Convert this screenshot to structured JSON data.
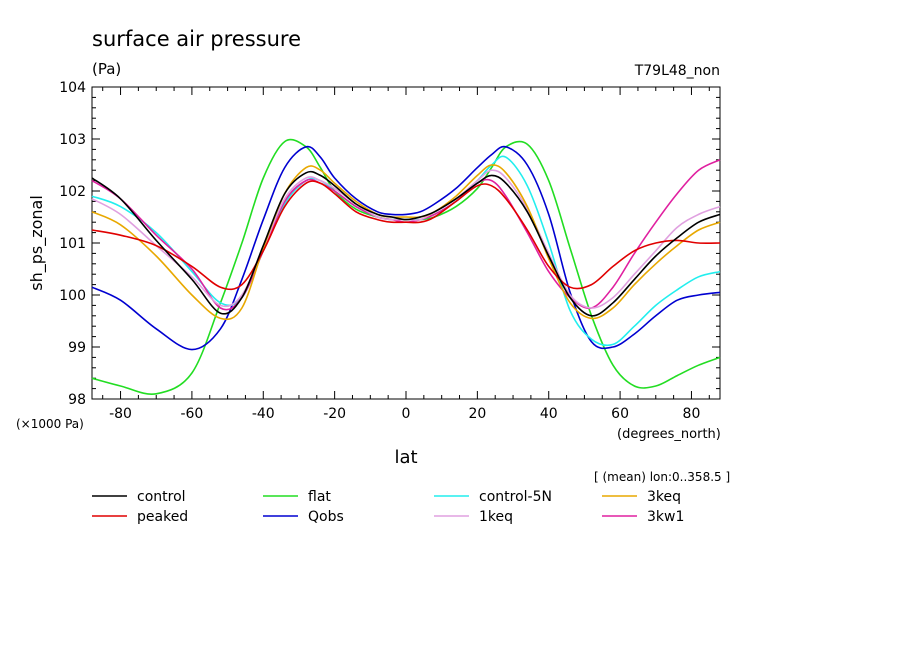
{
  "chart_data": {
    "type": "line",
    "title": "surface air pressure",
    "units": "(Pa)",
    "run_label": "T79L48_non",
    "ylabel": "sh_ps_zonal",
    "xlabel": "lat",
    "x_units": "(degrees_north)",
    "y_scale_label": "(×1000 Pa)",
    "mean_note": "[ (mean) lon:0..358.5 ]",
    "xlim": [
      -88,
      88
    ],
    "ylim": [
      98,
      104
    ],
    "x_ticks": [
      -80,
      -60,
      -40,
      -20,
      0,
      20,
      40,
      60,
      80
    ],
    "y_ticks": [
      98,
      99,
      100,
      101,
      102,
      103,
      104
    ],
    "grid": false,
    "legend_position": "bottom",
    "x": [
      -88,
      -80,
      -70,
      -60,
      -52,
      -46,
      -40,
      -34,
      -28,
      -24,
      -20,
      -14,
      -8,
      -4,
      0,
      4,
      8,
      14,
      20,
      24,
      28,
      34,
      40,
      46,
      52,
      58,
      64,
      70,
      76,
      82,
      88
    ],
    "series": [
      {
        "name": "control",
        "color": "#000000",
        "values": [
          102.25,
          101.85,
          101.05,
          100.3,
          99.65,
          99.95,
          100.95,
          101.95,
          102.35,
          102.3,
          102.1,
          101.75,
          101.55,
          101.5,
          101.45,
          101.5,
          101.6,
          101.85,
          102.15,
          102.3,
          102.15,
          101.6,
          100.75,
          99.95,
          99.6,
          99.85,
          100.3,
          100.75,
          101.1,
          101.4,
          101.55
        ]
      },
      {
        "name": "peaked",
        "color": "#e00000",
        "values": [
          101.25,
          101.15,
          100.95,
          100.55,
          100.15,
          100.2,
          100.85,
          101.7,
          102.15,
          102.15,
          101.95,
          101.6,
          101.45,
          101.4,
          101.4,
          101.4,
          101.5,
          101.8,
          102.1,
          102.1,
          101.85,
          101.25,
          100.55,
          100.15,
          100.2,
          100.55,
          100.85,
          101.0,
          101.05,
          101.0,
          101.0
        ]
      },
      {
        "name": "flat",
        "color": "#22dd22",
        "values": [
          98.4,
          98.25,
          98.1,
          98.5,
          99.85,
          101.0,
          102.25,
          102.95,
          102.85,
          102.45,
          102.0,
          101.65,
          101.5,
          101.45,
          101.45,
          101.45,
          101.5,
          101.7,
          102.05,
          102.45,
          102.85,
          102.9,
          102.2,
          100.9,
          99.6,
          98.65,
          98.25,
          98.25,
          98.45,
          98.65,
          98.8
        ]
      },
      {
        "name": "Qobs",
        "color": "#0000d0",
        "values": [
          100.15,
          99.9,
          99.35,
          98.95,
          99.35,
          100.3,
          101.45,
          102.45,
          102.85,
          102.65,
          102.25,
          101.85,
          101.6,
          101.55,
          101.55,
          101.6,
          101.75,
          102.05,
          102.45,
          102.7,
          102.85,
          102.5,
          101.55,
          100.05,
          99.1,
          99.0,
          99.25,
          99.6,
          99.9,
          100.0,
          100.05
        ]
      },
      {
        "name": "control-5N",
        "color": "#22eeee",
        "values": [
          101.9,
          101.7,
          101.2,
          100.45,
          99.85,
          99.95,
          100.85,
          101.75,
          102.2,
          102.2,
          102.0,
          101.7,
          101.5,
          101.45,
          101.45,
          101.45,
          101.55,
          101.8,
          102.2,
          102.5,
          102.65,
          102.1,
          101.0,
          99.7,
          99.15,
          99.05,
          99.4,
          99.8,
          100.1,
          100.35,
          100.45
        ]
      },
      {
        "name": "1keq",
        "color": "#e0a0e0",
        "values": [
          101.85,
          101.55,
          100.95,
          100.35,
          99.8,
          100.0,
          100.9,
          101.85,
          102.25,
          102.2,
          102.05,
          101.75,
          101.5,
          101.45,
          101.45,
          101.45,
          101.6,
          101.85,
          102.2,
          102.4,
          102.25,
          101.65,
          100.8,
          100.0,
          99.75,
          99.95,
          100.4,
          100.85,
          101.3,
          101.55,
          101.7
        ]
      },
      {
        "name": "3keq",
        "color": "#e8a800",
        "values": [
          101.6,
          101.35,
          100.75,
          100.0,
          99.55,
          99.75,
          100.9,
          101.95,
          102.45,
          102.4,
          102.15,
          101.8,
          101.55,
          101.5,
          101.5,
          101.5,
          101.6,
          101.9,
          102.3,
          102.5,
          102.35,
          101.7,
          100.7,
          99.85,
          99.55,
          99.75,
          100.2,
          100.6,
          100.95,
          101.25,
          101.4
        ]
      },
      {
        "name": "3kw1",
        "color": "#e020a0",
        "values": [
          102.2,
          101.85,
          101.15,
          100.5,
          99.75,
          99.95,
          100.85,
          101.8,
          102.2,
          102.15,
          102.0,
          101.7,
          101.5,
          101.45,
          101.4,
          101.45,
          101.55,
          101.8,
          102.15,
          102.2,
          101.9,
          101.2,
          100.45,
          99.95,
          99.75,
          100.15,
          100.8,
          101.4,
          101.95,
          102.4,
          102.6
        ]
      }
    ]
  }
}
